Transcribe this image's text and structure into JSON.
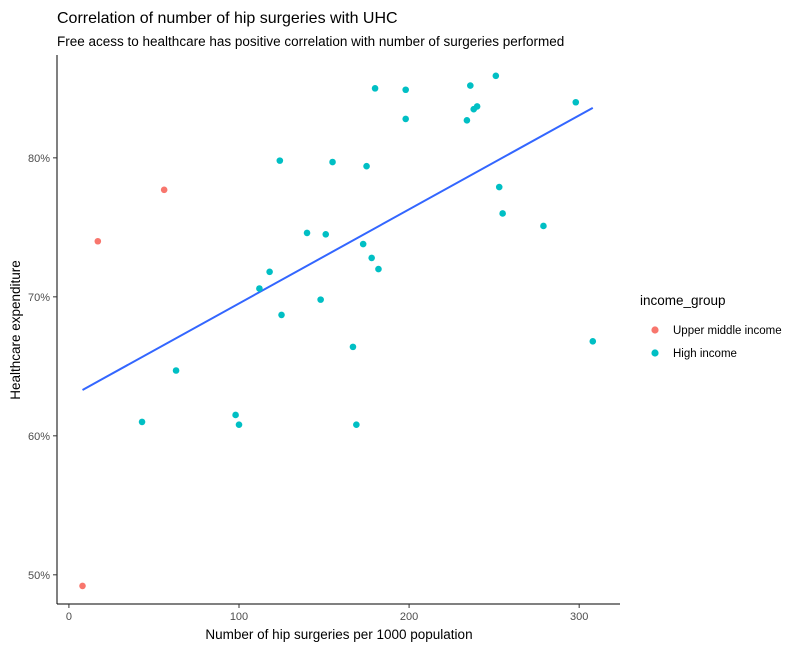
{
  "chart_data": {
    "type": "scatter",
    "title": "Correlation of number of hip surgeries with UHC",
    "subtitle": "Free acess to healthcare has positive correlation with number of surgeries performed",
    "xlabel": "Number of hip surgeries per 1000 population",
    "ylabel": "Healthcare expenditure",
    "xlim": [
      -7,
      324
    ],
    "ylim": [
      47.9,
      87.4
    ],
    "x_ticks": [
      0,
      100,
      200,
      300
    ],
    "x_tick_labels": [
      "0",
      "100",
      "200",
      "300"
    ],
    "y_ticks": [
      50,
      60,
      70,
      80
    ],
    "y_tick_labels": [
      "50%",
      "60%",
      "70%",
      "80%"
    ],
    "grid": false,
    "legend": {
      "title": "income_group",
      "position": "right"
    },
    "series": [
      {
        "name": "Upper middle income",
        "color": "#F8766D",
        "x": [
          8,
          17,
          56
        ],
        "y": [
          49.2,
          74.0,
          77.7
        ]
      },
      {
        "name": "High income",
        "color": "#00BFC4",
        "x": [
          43,
          63,
          98,
          100,
          112,
          118,
          124,
          125,
          140,
          148,
          151,
          155,
          167,
          169,
          173,
          175,
          178,
          180,
          182,
          198,
          198,
          234,
          236,
          238,
          240,
          251,
          253,
          255,
          279,
          298,
          308
        ],
        "y": [
          61.0,
          64.7,
          61.5,
          60.8,
          70.6,
          71.8,
          79.8,
          68.7,
          74.6,
          69.8,
          74.5,
          79.7,
          66.4,
          60.8,
          73.8,
          79.4,
          72.8,
          85.0,
          72.0,
          82.8,
          84.9,
          82.7,
          85.2,
          83.5,
          83.7,
          85.9,
          77.9,
          76.0,
          75.1,
          84.0,
          66.8
        ]
      }
    ],
    "trend_line": {
      "type": "linear",
      "color": "#3366FF",
      "x": [
        8,
        308
      ],
      "y": [
        63.3,
        83.6
      ]
    }
  }
}
